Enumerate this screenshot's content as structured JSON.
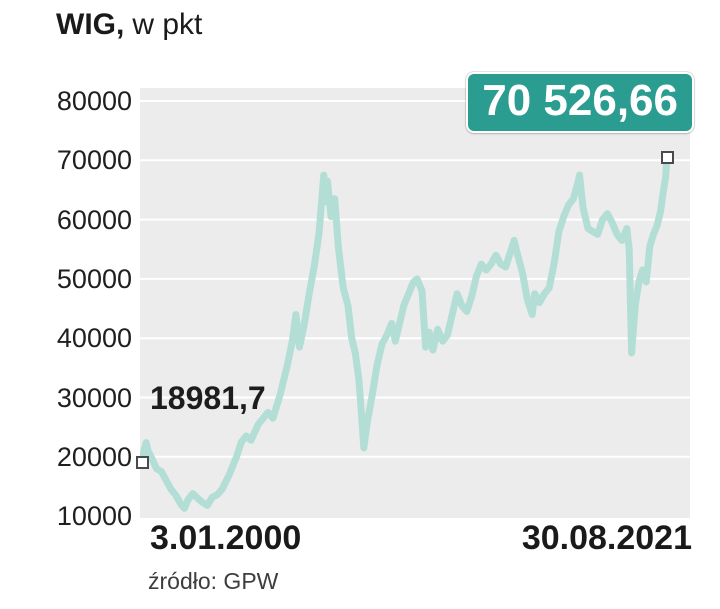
{
  "title": {
    "main": "WIG,",
    "suffix": "w pkt"
  },
  "annotations": {
    "start_label": "18981,7",
    "end_badge": "70 526,66"
  },
  "axis": {
    "x_first": "3.01.2000",
    "x_last": "30.08.2021"
  },
  "source": "źródło: GPW",
  "colors": {
    "line": "#b3ded6",
    "badge_bg": "#2b9c90",
    "badge_text": "#ffffff",
    "plot_bg": "#ececec",
    "grid": "#ffffff",
    "text": "#1a1a1a",
    "marker_border": "#4a4a4a"
  },
  "chart_data": {
    "type": "line",
    "title": "WIG, w pkt",
    "xlabel": "",
    "ylabel": "pkt",
    "ylim": [
      10000,
      82000
    ],
    "yticks": [
      10000,
      20000,
      30000,
      40000,
      50000,
      60000,
      70000,
      80000
    ],
    "x_axis_labels": [
      "3.01.2000",
      "30.08.2021"
    ],
    "start_value": 18981.7,
    "end_value": 70526.66,
    "grid": "horizontal",
    "legend": "none",
    "series": [
      {
        "name": "WIG",
        "points": [
          [
            2000.0,
            18981.7
          ],
          [
            2000.08,
            21000
          ],
          [
            2000.17,
            22400
          ],
          [
            2000.25,
            21000
          ],
          [
            2000.4,
            19800
          ],
          [
            2000.6,
            18000
          ],
          [
            2000.8,
            17500
          ],
          [
            2001.0,
            16000
          ],
          [
            2001.2,
            14500
          ],
          [
            2001.4,
            13500
          ],
          [
            2001.6,
            12000
          ],
          [
            2001.75,
            11300
          ],
          [
            2001.9,
            12800
          ],
          [
            2002.1,
            13800
          ],
          [
            2002.3,
            13000
          ],
          [
            2002.5,
            12300
          ],
          [
            2002.7,
            11800
          ],
          [
            2002.9,
            13200
          ],
          [
            2003.1,
            13600
          ],
          [
            2003.3,
            14500
          ],
          [
            2003.6,
            17000
          ],
          [
            2003.9,
            20000
          ],
          [
            2004.1,
            22500
          ],
          [
            2004.3,
            23500
          ],
          [
            2004.5,
            22800
          ],
          [
            2004.8,
            25500
          ],
          [
            2005.0,
            26500
          ],
          [
            2005.2,
            27500
          ],
          [
            2005.4,
            26500
          ],
          [
            2005.7,
            30500
          ],
          [
            2006.0,
            35500
          ],
          [
            2006.2,
            39500
          ],
          [
            2006.35,
            44000
          ],
          [
            2006.5,
            38500
          ],
          [
            2006.7,
            42500
          ],
          [
            2006.9,
            47500
          ],
          [
            2007.1,
            52000
          ],
          [
            2007.3,
            57500
          ],
          [
            2007.5,
            67500
          ],
          [
            2007.55,
            63000
          ],
          [
            2007.65,
            66500
          ],
          [
            2007.8,
            60500
          ],
          [
            2007.95,
            63500
          ],
          [
            2008.1,
            55500
          ],
          [
            2008.3,
            48500
          ],
          [
            2008.5,
            45500
          ],
          [
            2008.65,
            40000
          ],
          [
            2008.8,
            37500
          ],
          [
            2008.95,
            33000
          ],
          [
            2009.1,
            24500
          ],
          [
            2009.15,
            21500
          ],
          [
            2009.3,
            26000
          ],
          [
            2009.5,
            30500
          ],
          [
            2009.7,
            35500
          ],
          [
            2009.9,
            39000
          ],
          [
            2010.1,
            40500
          ],
          [
            2010.3,
            42500
          ],
          [
            2010.45,
            39500
          ],
          [
            2010.6,
            42000
          ],
          [
            2010.8,
            45500
          ],
          [
            2011.0,
            47500
          ],
          [
            2011.2,
            49500
          ],
          [
            2011.35,
            50000
          ],
          [
            2011.55,
            48000
          ],
          [
            2011.7,
            38500
          ],
          [
            2011.85,
            41000
          ],
          [
            2012.0,
            38000
          ],
          [
            2012.2,
            41500
          ],
          [
            2012.4,
            39500
          ],
          [
            2012.6,
            40500
          ],
          [
            2012.8,
            44000
          ],
          [
            2013.0,
            47500
          ],
          [
            2013.2,
            45500
          ],
          [
            2013.4,
            44500
          ],
          [
            2013.6,
            47000
          ],
          [
            2013.8,
            50500
          ],
          [
            2014.0,
            52500
          ],
          [
            2014.2,
            51500
          ],
          [
            2014.4,
            52500
          ],
          [
            2014.6,
            54000
          ],
          [
            2014.8,
            52500
          ],
          [
            2015.0,
            52000
          ],
          [
            2015.2,
            54500
          ],
          [
            2015.35,
            56500
          ],
          [
            2015.5,
            54000
          ],
          [
            2015.7,
            51000
          ],
          [
            2015.9,
            46500
          ],
          [
            2016.1,
            44000
          ],
          [
            2016.2,
            47500
          ],
          [
            2016.4,
            46000
          ],
          [
            2016.6,
            47500
          ],
          [
            2016.8,
            48500
          ],
          [
            2017.0,
            52500
          ],
          [
            2017.2,
            58000
          ],
          [
            2017.4,
            60500
          ],
          [
            2017.6,
            62500
          ],
          [
            2017.8,
            63500
          ],
          [
            2018.0,
            66500
          ],
          [
            2018.05,
            67500
          ],
          [
            2018.2,
            62000
          ],
          [
            2018.4,
            58500
          ],
          [
            2018.6,
            58000
          ],
          [
            2018.8,
            57500
          ],
          [
            2019.0,
            60000
          ],
          [
            2019.2,
            61000
          ],
          [
            2019.4,
            59500
          ],
          [
            2019.6,
            57500
          ],
          [
            2019.8,
            56500
          ],
          [
            2020.0,
            58500
          ],
          [
            2020.1,
            55000
          ],
          [
            2020.2,
            37500
          ],
          [
            2020.35,
            45500
          ],
          [
            2020.5,
            49500
          ],
          [
            2020.65,
            51500
          ],
          [
            2020.8,
            49500
          ],
          [
            2020.95,
            55500
          ],
          [
            2021.1,
            57500
          ],
          [
            2021.25,
            59000
          ],
          [
            2021.4,
            61500
          ],
          [
            2021.5,
            64500
          ],
          [
            2021.6,
            67000
          ],
          [
            2021.66,
            70526.66
          ]
        ]
      }
    ]
  }
}
